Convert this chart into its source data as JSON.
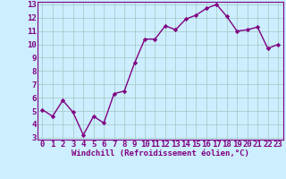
{
  "x": [
    0,
    1,
    2,
    3,
    4,
    5,
    6,
    7,
    8,
    9,
    10,
    11,
    12,
    13,
    14,
    15,
    16,
    17,
    18,
    19,
    20,
    21,
    22,
    23
  ],
  "y": [
    5.1,
    4.6,
    5.8,
    4.9,
    3.2,
    4.6,
    4.1,
    6.3,
    6.5,
    8.6,
    10.4,
    10.4,
    11.4,
    11.1,
    11.9,
    12.2,
    12.7,
    13.0,
    12.1,
    11.0,
    11.1,
    11.3,
    9.7,
    10.0
  ],
  "line_color": "#800080",
  "marker": "D",
  "marker_size": 2.2,
  "linewidth": 1.0,
  "bg_color": "#cceeff",
  "grid_color": "#aacccc",
  "xlabel": "Windchill (Refroidissement éolien,°C)",
  "xlim": [
    -0.5,
    23.5
  ],
  "ylim": [
    3,
    13
  ],
  "yticks": [
    3,
    4,
    5,
    6,
    7,
    8,
    9,
    10,
    11,
    12,
    13
  ],
  "xticks": [
    0,
    1,
    2,
    3,
    4,
    5,
    6,
    7,
    8,
    9,
    10,
    11,
    12,
    13,
    14,
    15,
    16,
    17,
    18,
    19,
    20,
    21,
    22,
    23
  ],
  "xlabel_fontsize": 6.5,
  "tick_fontsize": 6.5,
  "tick_color": "#800080",
  "axis_color": "#800080"
}
